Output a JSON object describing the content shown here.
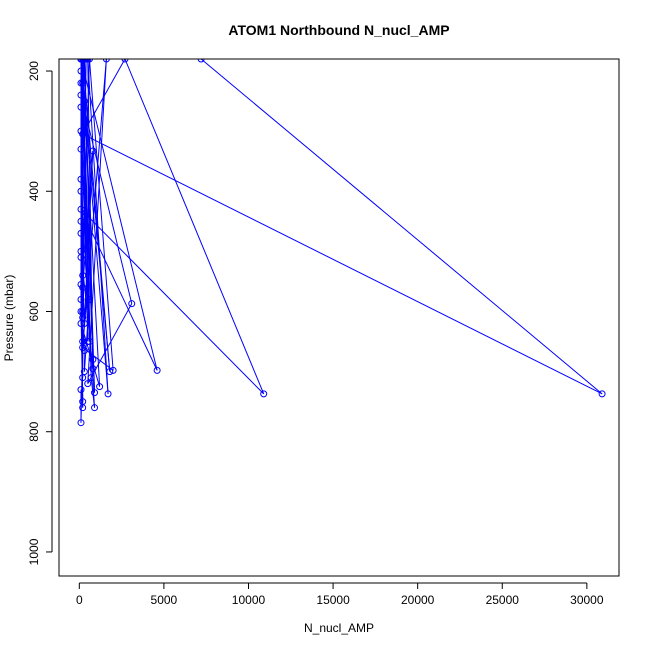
{
  "chart_data": {
    "type": "line",
    "title": "ATOM1 Northbound N_nucl_AMP",
    "xlabel": "N_nucl_AMP",
    "ylabel": "Pressure (mbar)",
    "xlim": [
      -1200,
      31900
    ],
    "ylim": [
      1040,
      180
    ],
    "y_reversed": true,
    "x_ticks": [
      0,
      5000,
      10000,
      15000,
      20000,
      25000,
      30000
    ],
    "x_tick_labels": [
      "0",
      "5000",
      "10000",
      "15000",
      "20000",
      "25000",
      "30000"
    ],
    "y_ticks": [
      200,
      400,
      600,
      800,
      1000
    ],
    "y_tick_labels": [
      "200",
      "400",
      "600",
      "800",
      "1000"
    ],
    "grid": false,
    "series": [
      {
        "color": "#0000ff",
        "marker": "open-circle",
        "x": [
          100,
          500,
          200,
          1800,
          100,
          7200,
          30900,
          200,
          2700,
          10900,
          100,
          4600,
          100,
          900,
          300,
          100,
          3100,
          500,
          1600,
          200,
          2000,
          600,
          100,
          1200,
          300,
          1700,
          500,
          800,
          100,
          200,
          700,
          900,
          100,
          300,
          800,
          200,
          600,
          100,
          200,
          400,
          100,
          300,
          800,
          200,
          100,
          600,
          300,
          100,
          200,
          100,
          200,
          100,
          100,
          100,
          200,
          100,
          100,
          200,
          100,
          100,
          200,
          100,
          300,
          200,
          100,
          100
        ],
        "y": [
          180,
          650,
          180,
          700,
          180,
          180,
          737,
          305,
          180,
          737,
          430,
          698,
          180,
          735,
          180,
          240,
          587,
          720,
          180,
          660,
          698,
          180,
          620,
          725,
          250,
          737,
          180,
          695,
          500,
          180,
          710,
          760,
          400,
          180,
          680,
          220,
          650,
          300,
          600,
          180,
          450,
          620,
          333,
          560,
          180,
          580,
          700,
          200,
          540,
          260,
          610,
          330,
          470,
          580,
          710,
          220,
          510,
          760,
          380,
          555,
          750,
          600,
          665,
          650,
          785,
          730
        ]
      }
    ]
  }
}
